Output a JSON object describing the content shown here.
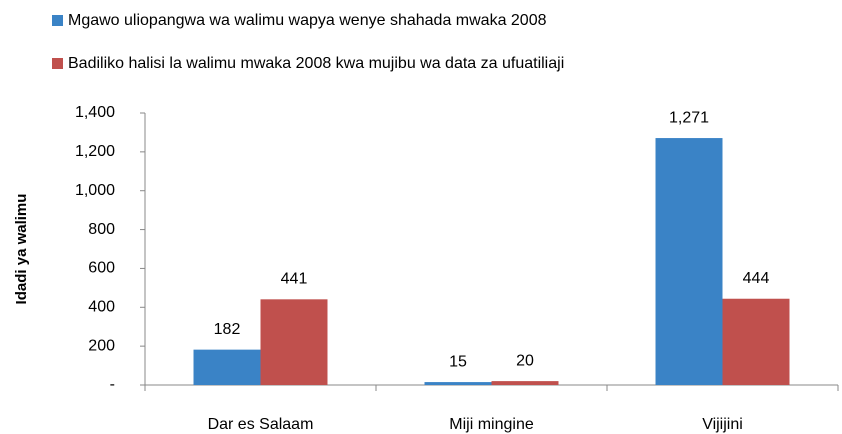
{
  "chart_data": {
    "type": "bar",
    "y_label": "Idadi ya walimu",
    "categories": [
      "Dar es Salaam",
      "Miji mingine",
      "Vijijini"
    ],
    "series": [
      {
        "name": "Mgawo uliopangwa wa walimu wapya wenye shahada mwaka 2008",
        "color": "#3a83c6",
        "values": [
          182,
          15,
          1271
        ],
        "value_labels": [
          "182",
          "15",
          "1,271"
        ]
      },
      {
        "name": "Badiliko halisi la walimu mwaka 2008 kwa mujibu wa data za ufuatiliaji",
        "color": "#c0504d",
        "values": [
          441,
          20,
          444
        ],
        "value_labels": [
          "441",
          "20",
          "444"
        ]
      }
    ],
    "ylim": [
      0,
      1400
    ],
    "yticks": [
      {
        "value": 0,
        "label": "-"
      },
      200,
      400,
      600,
      800,
      {
        "value": 1000,
        "label": "1,000"
      },
      {
        "value": 1200,
        "label": "1,200"
      },
      {
        "value": 1400,
        "label": "1,400"
      }
    ],
    "grid": false,
    "legend": "top-left"
  }
}
